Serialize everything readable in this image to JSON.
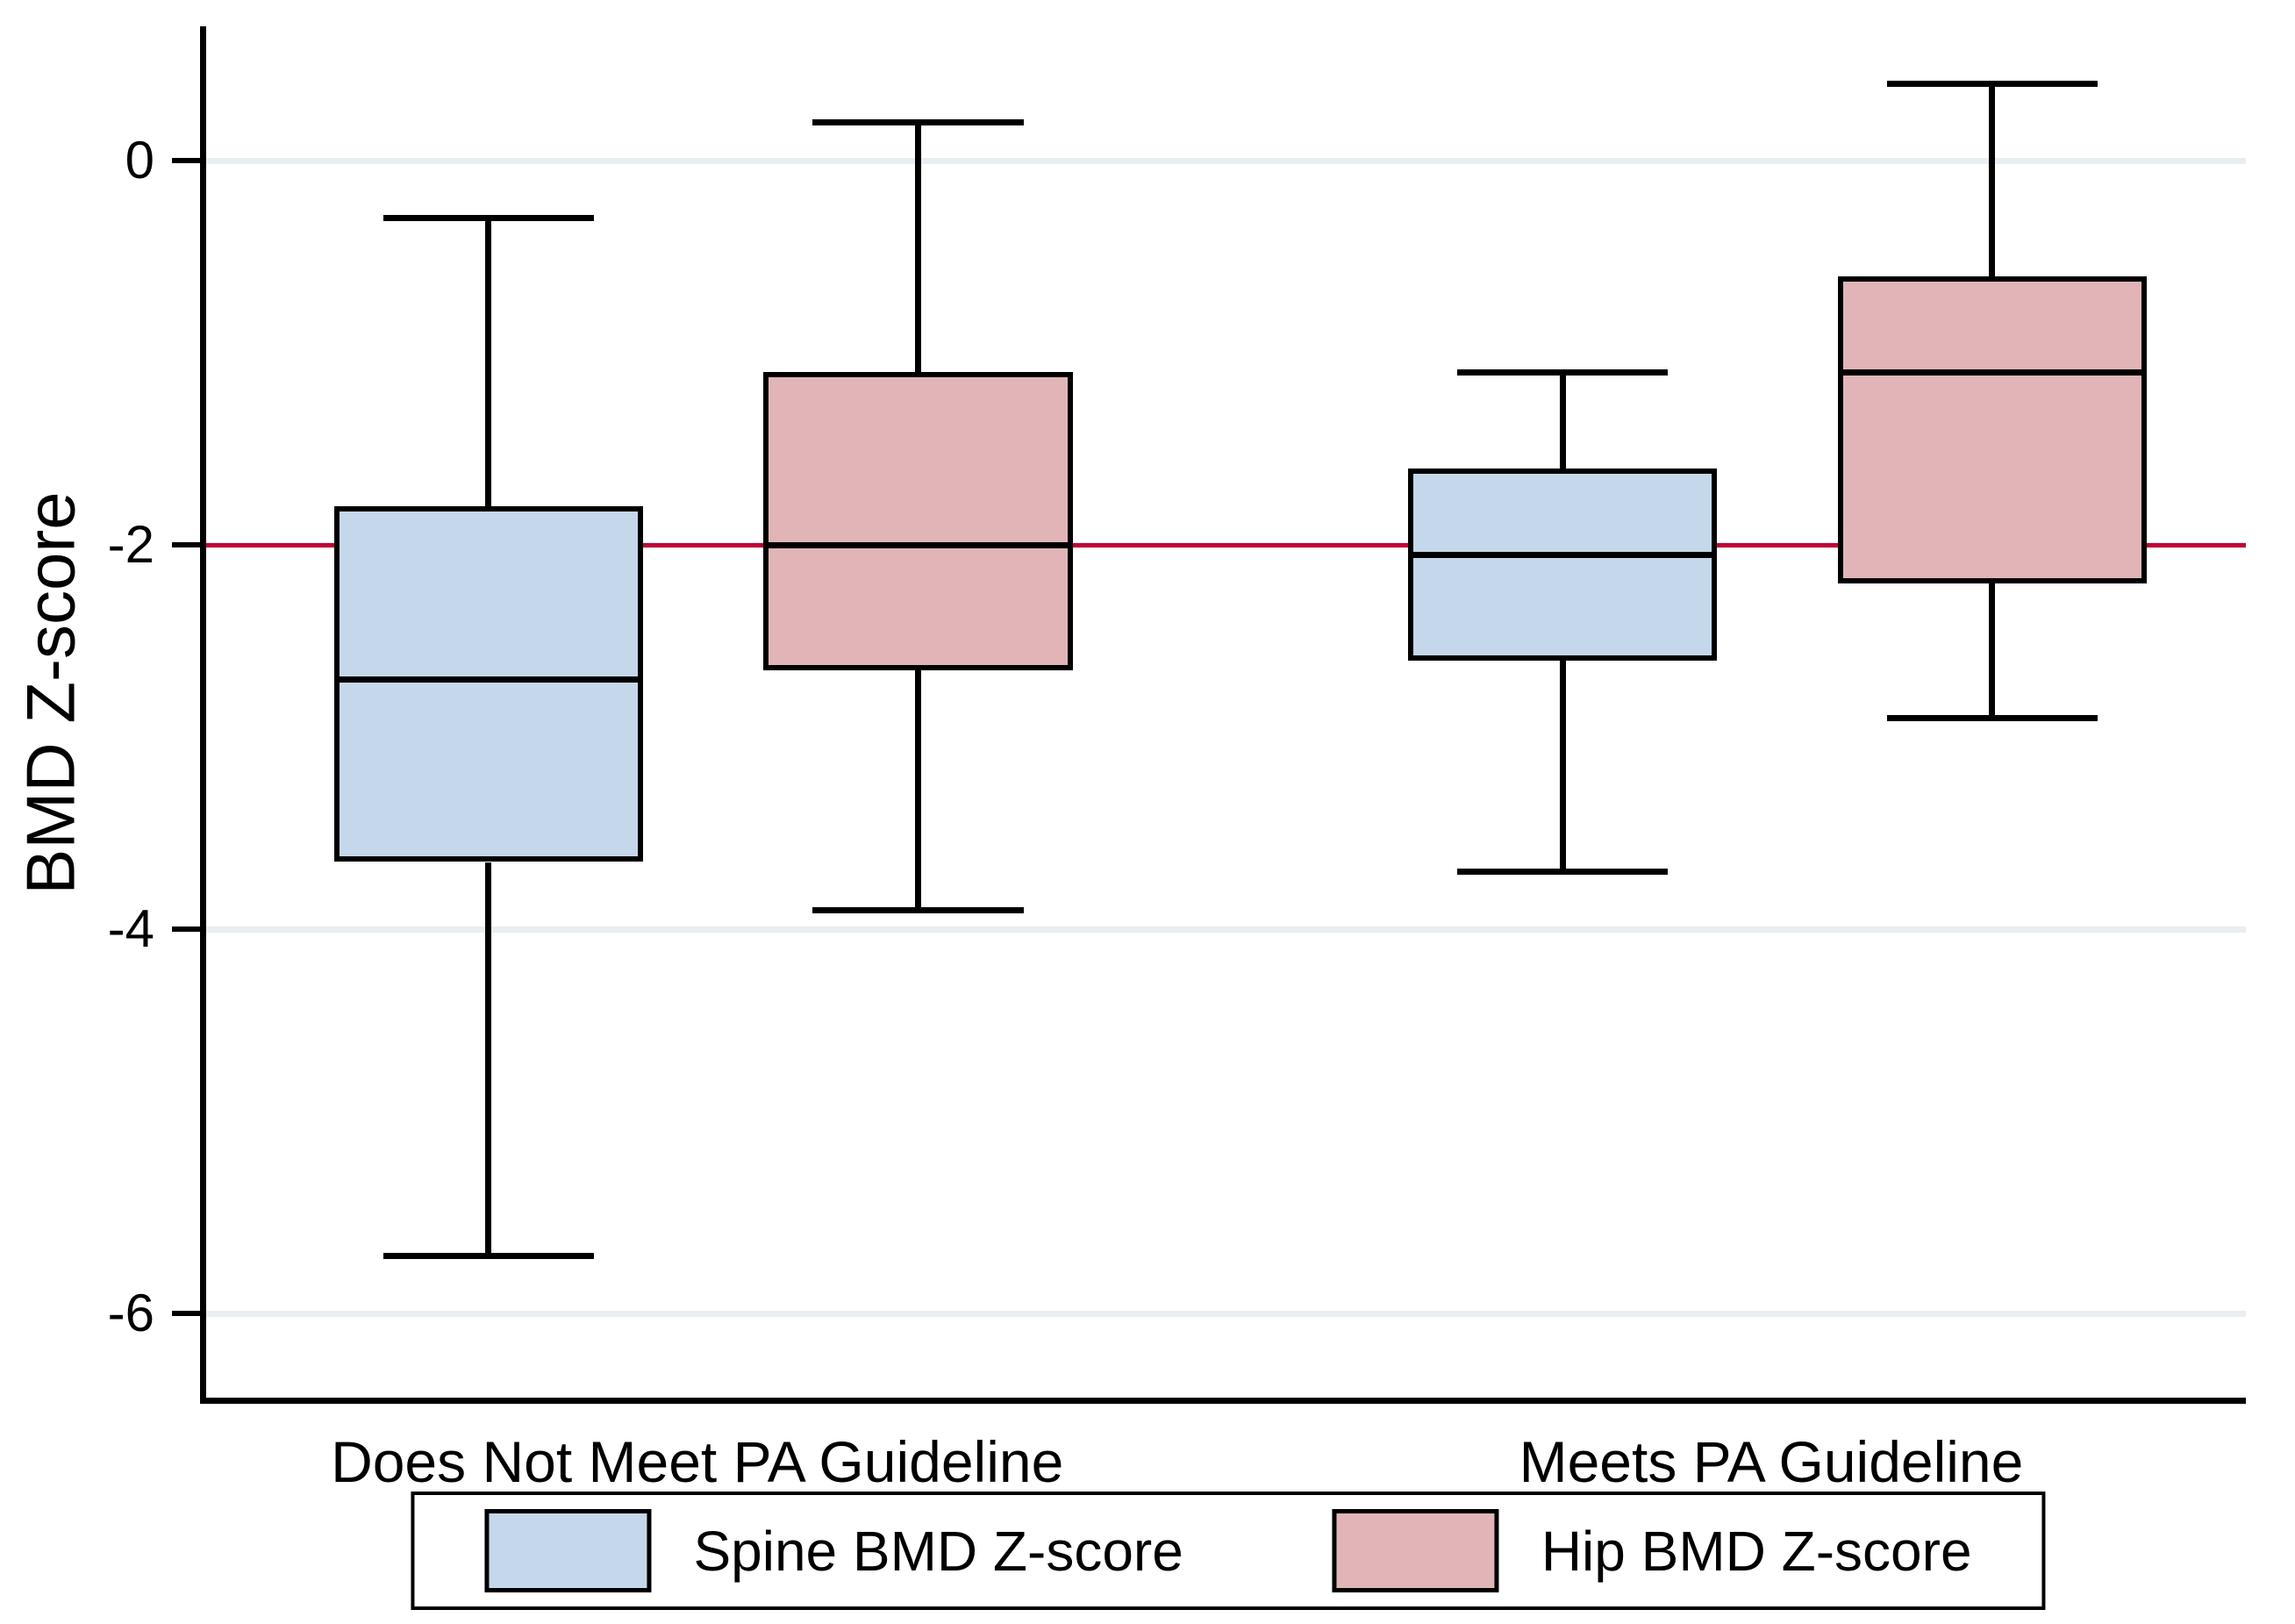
{
  "chart_data": {
    "type": "box",
    "title": "",
    "xlabel": "",
    "ylabel": "BMD Z-score",
    "yticks": [
      0,
      -2,
      -4,
      -6
    ],
    "ylim": [
      -6.47,
      0.7
    ],
    "grid": true,
    "gridline_color": "#e8eef1",
    "reference_line": {
      "value": -2,
      "color": "#c10534"
    },
    "groups": [
      "Does Not Meet PA Guideline",
      "Meets PA Guideline"
    ],
    "series": [
      {
        "name": "Spine BMD Z-score",
        "color": "#c5d7ea",
        "border_color": "#000000",
        "boxes": [
          {
            "group": "Does Not Meet PA Guideline",
            "whisker_low": -5.7,
            "q1": -3.65,
            "median": -2.7,
            "q3": -1.8,
            "whisker_high": -0.3
          },
          {
            "group": "Meets PA Guideline",
            "whisker_low": -3.7,
            "q1": -2.6,
            "median": -2.05,
            "q3": -1.6,
            "whisker_high": -1.1
          }
        ]
      },
      {
        "name": "Hip BMD Z-score",
        "color": "#e1b5b8",
        "border_color": "#000000",
        "boxes": [
          {
            "group": "Does Not Meet PA Guideline",
            "whisker_low": -3.9,
            "q1": -2.65,
            "median": -2.0,
            "q3": -1.1,
            "whisker_high": 0.2
          },
          {
            "group": "Meets PA Guideline",
            "whisker_low": -2.9,
            "q1": -2.2,
            "median": -1.1,
            "q3": -0.6,
            "whisker_high": 0.4
          }
        ]
      }
    ],
    "legend": {
      "position": "bottom",
      "entries": [
        "Spine BMD Z-score",
        "Hip BMD Z-score"
      ]
    }
  }
}
